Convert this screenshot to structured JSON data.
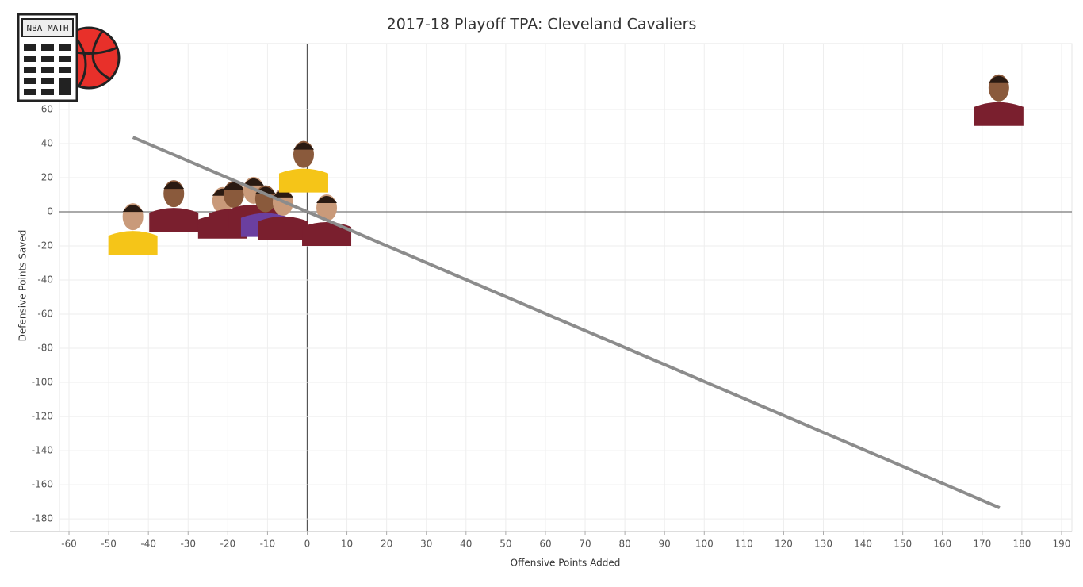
{
  "chart_data": {
    "type": "scatter",
    "title": "2017-18 Playoff TPA: Cleveland Cavaliers",
    "x_label": "Offensive Points Added",
    "y_label": "Defensive Points Saved",
    "logo_text": "NBA MATH",
    "xlim": [
      -62.4,
      192.6
    ],
    "ylim": [
      -187.4,
      98.6
    ],
    "xticks": [
      -60,
      -50,
      -40,
      -30,
      -20,
      -10,
      0,
      10,
      20,
      30,
      40,
      50,
      60,
      70,
      80,
      90,
      100,
      110,
      120,
      130,
      140,
      150,
      160,
      170,
      180,
      190
    ],
    "yticks": [
      -180,
      -160,
      -140,
      -120,
      -100,
      -80,
      -60,
      -40,
      -20,
      0,
      20,
      40,
      60
    ],
    "grid": true,
    "series": [
      {
        "x": [
          -43.9,
          -33.6,
          -21.3,
          -18.5,
          -13.5,
          -10.5,
          -6.1,
          -0.9,
          4.9,
          174.2
        ],
        "y": [
          -7.5,
          6,
          2,
          5.6,
          8,
          3,
          1,
          29,
          -2.3,
          68
        ]
      }
    ],
    "trend_line": {
      "color": "#8c8c8c",
      "x": [
        -43.9,
        174.4
      ],
      "y": [
        43.7,
        -173.5
      ]
    }
  }
}
